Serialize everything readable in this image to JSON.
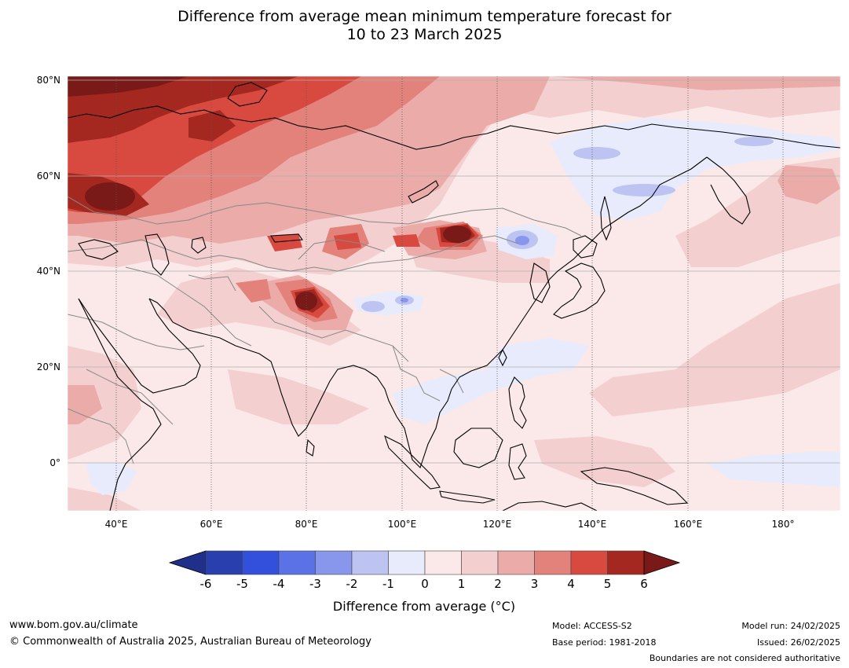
{
  "title": {
    "line1": "Difference from average mean minimum temperature forecast for",
    "line2": "10 to 23 March 2025"
  },
  "map": {
    "lat_labels": [
      "80°N",
      "60°N",
      "40°N",
      "20°N",
      "0°"
    ],
    "lon_labels": [
      "40°E",
      "60°E",
      "80°E",
      "100°E",
      "120°E",
      "140°E",
      "160°E",
      "180°"
    ]
  },
  "colorbar": {
    "ticks": [
      "-6",
      "-5",
      "-4",
      "-3",
      "-2",
      "-1",
      "0",
      "1",
      "2",
      "3",
      "4",
      "5",
      "6"
    ],
    "colors": [
      "#1f2f8a",
      "#2a3fae",
      "#3250dc",
      "#5b72e6",
      "#8896ec",
      "#bdc4f2",
      "#e8ebfb",
      "#fbe9e9",
      "#f3d0cf",
      "#ebaca9",
      "#e3817b",
      "#d84a40",
      "#a52820",
      "#7a1a18"
    ],
    "label": "Difference from average (°C)"
  },
  "footer": {
    "website": "www.bom.gov.au/climate",
    "copyright": "© Commonwealth of Australia 2025, Australian Bureau of Meteorology",
    "model": "Model: ACCESS-S2",
    "base_period": "Base period: 1981-2018",
    "model_run": "Model run: 24/02/2025",
    "issued": "Issued: 26/02/2025",
    "boundaries": "Boundaries are not considered authoritative"
  }
}
